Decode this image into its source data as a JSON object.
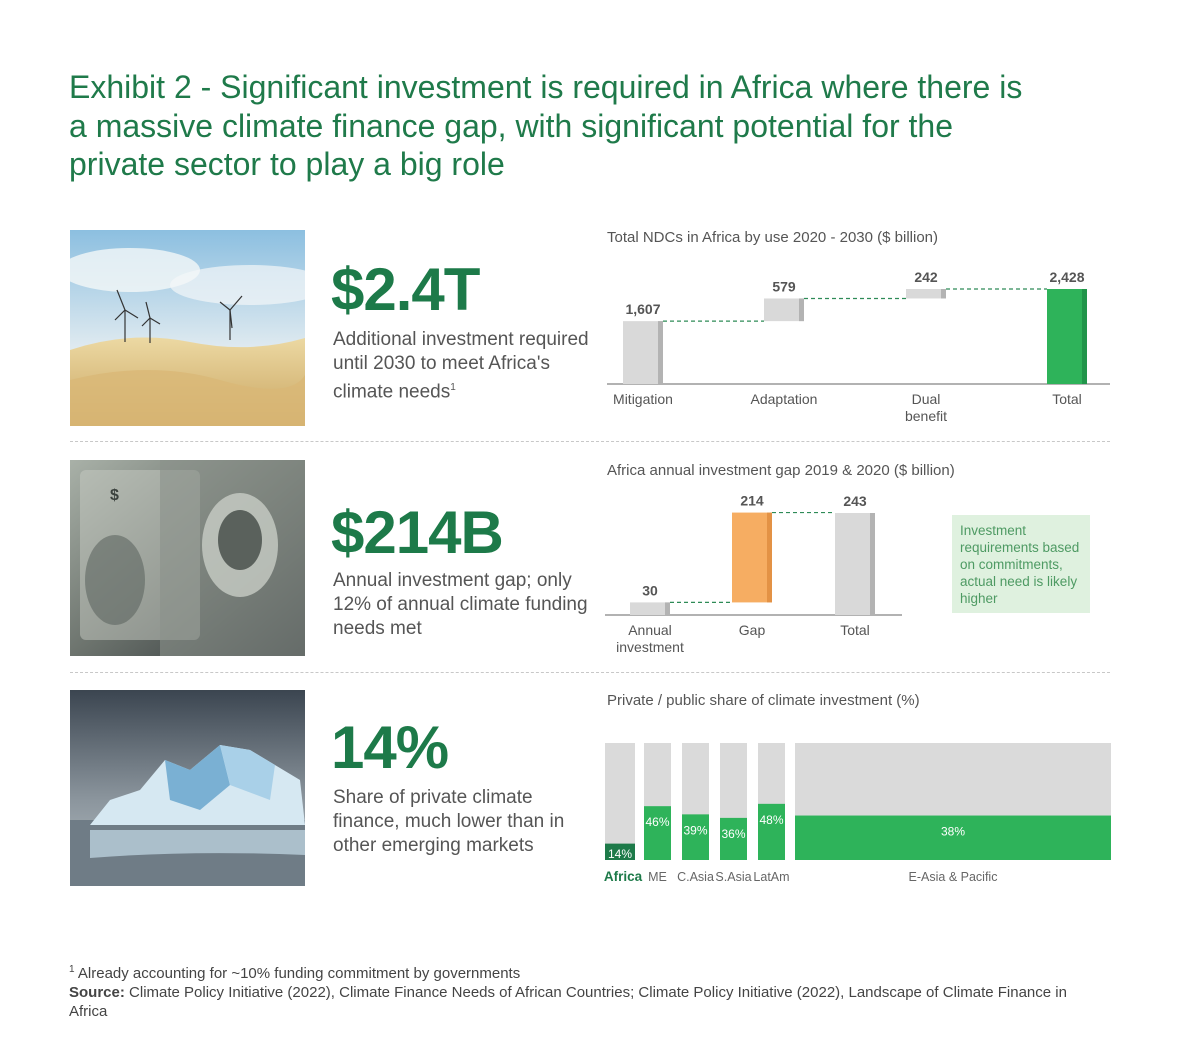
{
  "title": "Exhibit 2 - Significant investment is required in Africa where there is a massive climate finance gap, with significant potential for the private sector to play a big role",
  "colors": {
    "green": "#1d7a49",
    "bright_green": "#2eb35a",
    "orange": "#f6ad62",
    "grey": "#d9d9d9"
  },
  "rows": [
    {
      "image": "desert-wind-turbines",
      "big": "$2.4T",
      "desc": "Additional investment required until 2030 to meet Africa's climate needs",
      "desc_sup": "1"
    },
    {
      "image": "dollar-banknotes",
      "big": "$214B",
      "desc": "Annual investment gap; only 12% of annual climate funding needs met"
    },
    {
      "image": "melting-iceberg",
      "big": "14%",
      "desc": "Share of private climate finance, much lower than in other emerging markets"
    }
  ],
  "note": "Investment requirements based on commitments, actual need is likely higher",
  "chart_data": [
    {
      "type": "bar",
      "subtype": "waterfall",
      "title": "Total NDCs in Africa by use 2020 - 2030 ($ billion)",
      "categories": [
        "Mitigation",
        "Adaptation",
        "Dual\nbenefit",
        "Total"
      ],
      "values": [
        1607,
        579,
        242,
        2428
      ],
      "labels": [
        "1,607",
        "579",
        "242",
        "2,428"
      ],
      "ylim": [
        0,
        2428
      ],
      "colors": [
        "#d9d9d9",
        "#d9d9d9",
        "#d9d9d9",
        "#2eb35a"
      ]
    },
    {
      "type": "bar",
      "subtype": "waterfall",
      "title": "Africa annual investment gap 2019 & 2020 ($ billion)",
      "categories": [
        "Annual\ninvestment",
        "Gap",
        "Total"
      ],
      "values": [
        30,
        214,
        243
      ],
      "labels": [
        "30",
        "214",
        "243"
      ],
      "ylim": [
        0,
        243
      ],
      "colors": [
        "#d9d9d9",
        "#f6ad62",
        "#d9d9d9"
      ]
    },
    {
      "type": "bar",
      "subtype": "stacked-100",
      "title": "Private / public share of climate investment (%)",
      "categories": [
        "Africa",
        "ME",
        "C.Asia",
        "S.Asia",
        "LatAm",
        "E-Asia & Pacific"
      ],
      "values": [
        14,
        46,
        39,
        36,
        48,
        38
      ],
      "labels": [
        "14%",
        "46%",
        "39%",
        "36%",
        "48%",
        "38%"
      ],
      "ylim": [
        0,
        100
      ],
      "colors": [
        "#1d7a49",
        "#2eb35a",
        "#2eb35a",
        "#2eb35a",
        "#2eb35a",
        "#2eb35a"
      ]
    }
  ],
  "footnote": {
    "sup": "1",
    "text": "Already accounting for ~10% funding commitment by governments",
    "source_label": "Source:",
    "source_text": "Climate Policy Initiative (2022), Climate Finance Needs of African Countries; Climate Policy Initiative (2022), Landscape of Climate Finance in Africa"
  }
}
